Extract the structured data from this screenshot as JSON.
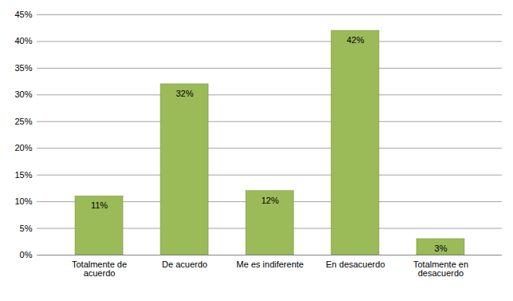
{
  "chart_data": {
    "type": "bar",
    "categories": [
      "Totalmente de acuerdo",
      "De acuerdo",
      "Me es indiferente",
      "En desacuerdo",
      "Totalmente en desacuerdo"
    ],
    "values": [
      11,
      32,
      12,
      42,
      3
    ],
    "value_labels": [
      "11%",
      "32%",
      "12%",
      "42%",
      "3%"
    ],
    "color": "#9bbb59",
    "ylim": [
      0,
      45
    ],
    "yticks": [
      {
        "value": 0,
        "label": "0%"
      },
      {
        "value": 5,
        "label": "5%"
      },
      {
        "value": 10,
        "label": "10%"
      },
      {
        "value": 15,
        "label": "15%"
      },
      {
        "value": 20,
        "label": "20%"
      },
      {
        "value": 25,
        "label": "25%"
      },
      {
        "value": 30,
        "label": "30%"
      },
      {
        "value": 35,
        "label": "35%"
      },
      {
        "value": 40,
        "label": "40%"
      },
      {
        "value": 45,
        "label": "45%"
      }
    ],
    "grid": true,
    "data_labels": true
  }
}
